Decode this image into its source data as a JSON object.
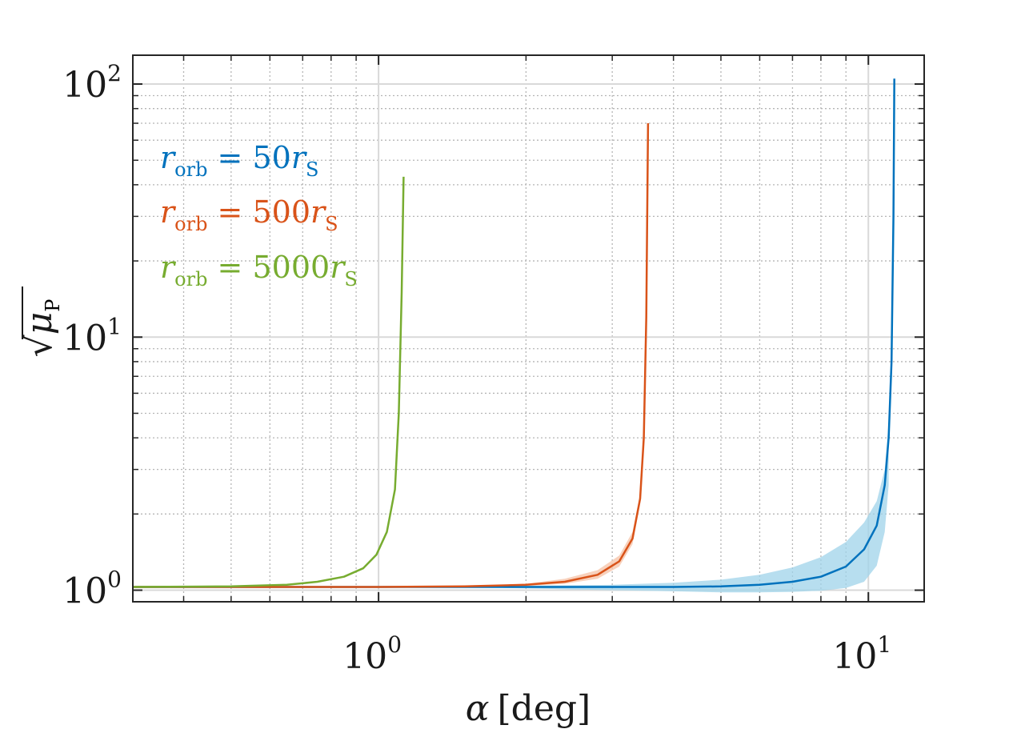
{
  "chart_data": {
    "type": "line",
    "title": "",
    "xscale": "log",
    "yscale": "log",
    "xlim": [
      0.315,
      13
    ],
    "ylim": [
      0.9,
      130
    ],
    "grid": true,
    "xlabel": {
      "symbol": "α",
      "unit": "[deg]"
    },
    "ylabel": {
      "symbol": "μ",
      "subscript": "P",
      "radical": "√"
    },
    "xticks": [
      {
        "value": 1,
        "base": "10",
        "exp": "0"
      },
      {
        "value": 10,
        "base": "10",
        "exp": "1"
      }
    ],
    "yticks": [
      {
        "value": 1,
        "base": "10",
        "exp": "0"
      },
      {
        "value": 10,
        "base": "10",
        "exp": "1"
      },
      {
        "value": 100,
        "base": "10",
        "exp": "2"
      }
    ],
    "legend_position": "top-left",
    "series": [
      {
        "name": "r_orb = 50 r_S",
        "legend": {
          "r": "r",
          "sub": "orb",
          "eq": "=",
          "num": "50",
          "r2": "r",
          "sub2": "S"
        },
        "color": "#0072bd",
        "band_color": "#9fd3ea",
        "x": [
          0.315,
          1.0,
          2.0,
          3.0,
          4.0,
          5.0,
          6.0,
          7.0,
          8.0,
          9.0,
          9.8,
          10.4,
          10.8,
          11.0,
          11.15,
          11.25,
          11.3
        ],
        "y": [
          1.03,
          1.03,
          1.03,
          1.03,
          1.03,
          1.035,
          1.05,
          1.08,
          1.13,
          1.24,
          1.45,
          1.8,
          2.6,
          4.0,
          8.0,
          30.0,
          105.0
        ],
        "band_x": [
          1.8,
          3.0,
          4.0,
          5.0,
          6.0,
          7.0,
          8.0,
          9.0,
          9.8,
          10.4,
          10.8,
          11.0
        ],
        "band_lo": [
          1.02,
          1.0,
          0.99,
          0.98,
          0.98,
          0.985,
          0.995,
          1.02,
          1.08,
          1.25,
          1.7,
          2.6
        ],
        "band_hi": [
          1.04,
          1.05,
          1.07,
          1.1,
          1.15,
          1.23,
          1.35,
          1.55,
          1.85,
          2.25,
          3.0,
          4.6
        ]
      },
      {
        "name": "r_orb = 500 r_S",
        "legend": {
          "r": "r",
          "sub": "orb",
          "eq": "=",
          "num": "500",
          "r2": "r",
          "sub2": "S"
        },
        "color": "#d95319",
        "band_color": "#f5c2a6",
        "x": [
          0.315,
          1.0,
          1.5,
          2.0,
          2.4,
          2.8,
          3.1,
          3.3,
          3.42,
          3.48,
          3.52,
          3.55
        ],
        "y": [
          1.03,
          1.03,
          1.035,
          1.05,
          1.08,
          1.15,
          1.3,
          1.6,
          2.3,
          4.0,
          12.0,
          70.0
        ],
        "band_x": [
          1.6,
          2.0,
          2.4,
          2.8,
          3.1,
          3.3,
          3.42
        ],
        "band_lo": [
          1.03,
          1.04,
          1.06,
          1.11,
          1.24,
          1.52,
          2.2
        ],
        "band_hi": [
          1.04,
          1.06,
          1.11,
          1.2,
          1.37,
          1.7,
          2.4
        ]
      },
      {
        "name": "r_orb = 5000 r_S",
        "legend": {
          "r": "r",
          "sub": "orb",
          "eq": "=",
          "num": "5000",
          "r2": "r",
          "sub2": "S"
        },
        "color": "#77ac30",
        "band_color": "#cfe3b0",
        "x": [
          0.315,
          0.5,
          0.65,
          0.75,
          0.85,
          0.93,
          0.99,
          1.04,
          1.08,
          1.1,
          1.115,
          1.125
        ],
        "y": [
          1.03,
          1.035,
          1.05,
          1.08,
          1.13,
          1.22,
          1.38,
          1.7,
          2.5,
          5.0,
          15.0,
          43.0
        ],
        "band_x": [],
        "band_lo": [],
        "band_hi": []
      }
    ]
  }
}
